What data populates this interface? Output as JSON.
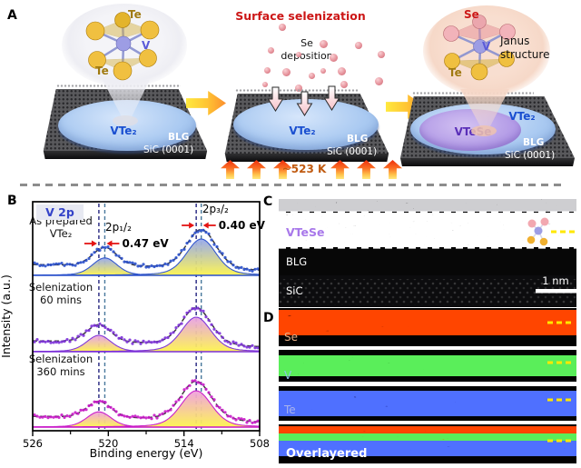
{
  "panels": {
    "a": {
      "label": "A",
      "title": "Surface selenization",
      "dep1": "Se",
      "dep2": "deposition",
      "temperature": "~523 K",
      "janus1": "Janus",
      "janus2": "structure",
      "mol_left_top": "Te",
      "mol_left_v": "V",
      "mol_left_bottom": "Te",
      "mol_right_se": "Se",
      "mol_right_v": "V",
      "mol_right_te": "Te",
      "island_left": "VTe₂",
      "island_middle": "VTe₂",
      "island_right_outer": "VTe₂",
      "island_right_inner": "VTeSe",
      "substrate_blg": "BLG",
      "substrate_sic": "SiC (0001)"
    },
    "b": {
      "label": "B"
    },
    "c": {
      "label": "C",
      "layer": "VTeSe",
      "layer_color": "#a878ea",
      "region1": "BLG",
      "region2": "SiC",
      "scalebar": "1 nm"
    },
    "d": {
      "label": "D",
      "maps": [
        {
          "label": "Se",
          "label_color": "#e8b088",
          "band_color": "#ff1400"
        },
        {
          "label": "V",
          "label_color": "#8cc8e8",
          "band_color": "#18c818"
        },
        {
          "label": "Te",
          "label_color": "#aab4ec",
          "band_color": "#1428ff"
        },
        {
          "label": "Overlayered",
          "label_color": "#ffffff",
          "band_color": "mixed"
        }
      ],
      "marker_color": "#ffe800"
    }
  },
  "chart_data": {
    "type": "line",
    "title": "V 2p",
    "xlabel": "Binding energy (eV)",
    "ylabel": "Intensity (a.u.)",
    "x_axis": {
      "range": [
        526,
        508
      ],
      "major_ticks": [
        526,
        520,
        514,
        508
      ],
      "minor_ticks": [
        523,
        517,
        511
      ],
      "reversed": true
    },
    "fill_bottom": "#fdf44e",
    "annotation_color": "#e41414",
    "guide_colors": {
      "as_prepared": "#48789c",
      "selenized": "#23237f"
    },
    "peak_labels": [
      {
        "text": "2p₁/₂",
        "be": 519.2,
        "y": 42
      },
      {
        "text": "2p₃/₂",
        "be": 511.5,
        "y": 22
      }
    ],
    "series": [
      {
        "name_lines": [
          "As prepared",
          "VTe₂"
        ],
        "color": "#2a50cc",
        "fill_top": "#96a8ee",
        "peaks": [
          {
            "center": 520.28,
            "sigma": 0.95,
            "amp": 0.48
          },
          {
            "center": 512.63,
            "sigma": 1.15,
            "amp": 1.0
          }
        ]
      },
      {
        "name_lines": [
          "Selenization",
          "60 mins"
        ],
        "color": "#7b2fd8",
        "fill_top": "#e8a0e8",
        "peaks": [
          {
            "center": 520.75,
            "sigma": 0.95,
            "amp": 0.45
          },
          {
            "center": 513.03,
            "sigma": 1.15,
            "amp": 0.95
          }
        ]
      },
      {
        "name_lines": [
          "Selenization",
          "360 mins"
        ],
        "color": "#c818c8",
        "fill_top": "#f0a0e0",
        "peaks": [
          {
            "center": 520.75,
            "sigma": 0.95,
            "amp": 0.42
          },
          {
            "center": 513.03,
            "sigma": 1.2,
            "amp": 1.0
          }
        ]
      }
    ],
    "shifts": [
      {
        "label": "0.47 eV",
        "from": 520.28,
        "to": 520.75
      },
      {
        "label": "0.40 eV",
        "from": 512.63,
        "to": 513.03
      }
    ]
  }
}
